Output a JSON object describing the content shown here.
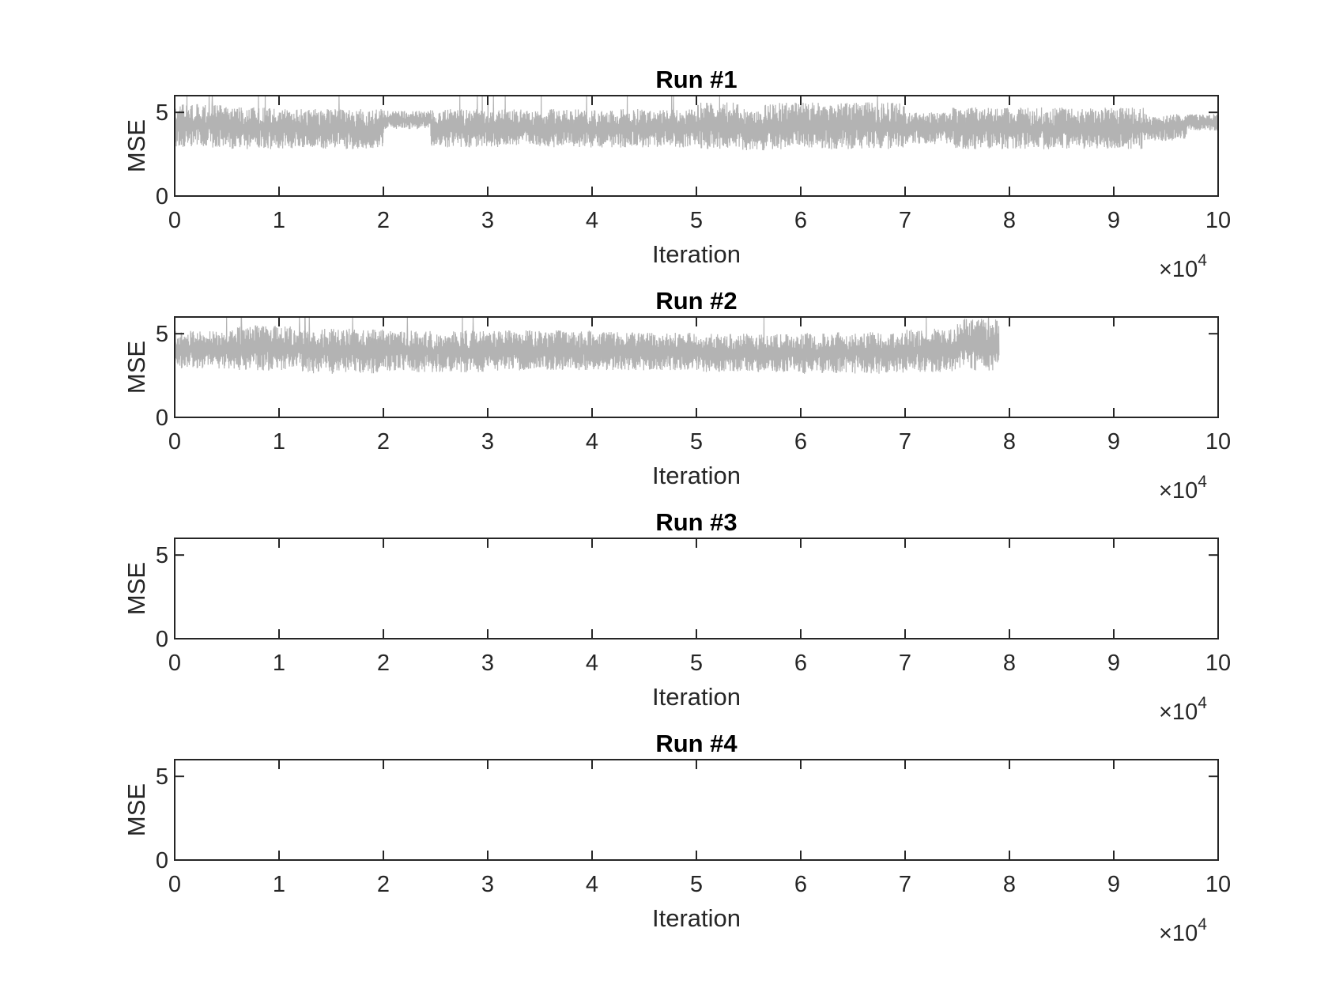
{
  "chart_data": [
    {
      "type": "line",
      "title": "Run #1",
      "xlabel": "Iteration",
      "ylabel": "MSE",
      "x_exponent_base": "10",
      "x_exponent_power": "4",
      "x_exponent_prefix": "×",
      "xlim": [
        0,
        10
      ],
      "ylim": [
        0,
        6
      ],
      "x_ticks": [
        0,
        1,
        2,
        3,
        4,
        5,
        6,
        7,
        8,
        9,
        10
      ],
      "y_ticks": [
        0,
        5
      ],
      "grid": false,
      "series": [
        {
          "color": "#b3b3b3",
          "x_end": 10,
          "segments": [
            {
              "x0": 0.0,
              "x1": 0.5,
              "low": 2.9,
              "high": 5.5
            },
            {
              "x0": 0.5,
              "x1": 1.0,
              "low": 2.8,
              "high": 5.3
            },
            {
              "x0": 1.0,
              "x1": 2.0,
              "low": 2.8,
              "high": 5.2
            },
            {
              "x0": 2.0,
              "x1": 2.45,
              "low": 4.0,
              "high": 5.1
            },
            {
              "x0": 2.45,
              "x1": 3.3,
              "low": 2.9,
              "high": 5.2
            },
            {
              "x0": 3.3,
              "x1": 5.0,
              "low": 2.9,
              "high": 5.2
            },
            {
              "x0": 5.0,
              "x1": 5.4,
              "low": 2.8,
              "high": 5.6
            },
            {
              "x0": 5.4,
              "x1": 5.65,
              "low": 2.7,
              "high": 5.2
            },
            {
              "x0": 5.65,
              "x1": 7.0,
              "low": 2.8,
              "high": 5.6
            },
            {
              "x0": 7.0,
              "x1": 7.45,
              "low": 3.1,
              "high": 5.0
            },
            {
              "x0": 7.45,
              "x1": 9.3,
              "low": 2.8,
              "high": 5.3
            },
            {
              "x0": 9.3,
              "x1": 9.7,
              "low": 3.3,
              "high": 4.9
            },
            {
              "x0": 9.7,
              "x1": 10.0,
              "low": 3.9,
              "high": 4.9
            }
          ]
        }
      ]
    },
    {
      "type": "line",
      "title": "Run #2",
      "xlabel": "Iteration",
      "ylabel": "MSE",
      "x_exponent_base": "10",
      "x_exponent_power": "4",
      "x_exponent_prefix": "×",
      "xlim": [
        0,
        10
      ],
      "ylim": [
        0,
        6
      ],
      "x_ticks": [
        0,
        1,
        2,
        3,
        4,
        5,
        6,
        7,
        8,
        9,
        10
      ],
      "y_ticks": [
        0,
        5
      ],
      "grid": false,
      "series": [
        {
          "color": "#b3b3b3",
          "x_end": 7.9,
          "segments": [
            {
              "x0": 0.0,
              "x1": 0.6,
              "low": 2.9,
              "high": 5.2
            },
            {
              "x0": 0.6,
              "x1": 1.2,
              "low": 2.8,
              "high": 5.5
            },
            {
              "x0": 1.2,
              "x1": 2.0,
              "low": 2.6,
              "high": 5.3
            },
            {
              "x0": 2.0,
              "x1": 3.0,
              "low": 2.7,
              "high": 5.2
            },
            {
              "x0": 3.0,
              "x1": 4.0,
              "low": 2.8,
              "high": 5.2
            },
            {
              "x0": 4.0,
              "x1": 5.0,
              "low": 2.8,
              "high": 5.1
            },
            {
              "x0": 5.0,
              "x1": 6.0,
              "low": 2.7,
              "high": 5.0
            },
            {
              "x0": 6.0,
              "x1": 7.0,
              "low": 2.6,
              "high": 5.1
            },
            {
              "x0": 7.0,
              "x1": 7.5,
              "low": 2.7,
              "high": 5.3
            },
            {
              "x0": 7.5,
              "x1": 7.9,
              "low": 2.8,
              "high": 5.9
            }
          ]
        }
      ]
    },
    {
      "type": "line",
      "title": "Run #3",
      "xlabel": "Iteration",
      "ylabel": "MSE",
      "x_exponent_base": "10",
      "x_exponent_power": "4",
      "x_exponent_prefix": "×",
      "xlim": [
        0,
        10
      ],
      "ylim": [
        0,
        6
      ],
      "x_ticks": [
        0,
        1,
        2,
        3,
        4,
        5,
        6,
        7,
        8,
        9,
        10
      ],
      "y_ticks": [
        0,
        5
      ],
      "grid": false,
      "series": []
    },
    {
      "type": "line",
      "title": "Run #4",
      "xlabel": "Iteration",
      "ylabel": "MSE",
      "x_exponent_base": "10",
      "x_exponent_power": "4",
      "x_exponent_prefix": "×",
      "xlim": [
        0,
        10
      ],
      "ylim": [
        0,
        6
      ],
      "x_ticks": [
        0,
        1,
        2,
        3,
        4,
        5,
        6,
        7,
        8,
        9,
        10
      ],
      "y_ticks": [
        0,
        5
      ],
      "grid": false,
      "series": []
    }
  ]
}
